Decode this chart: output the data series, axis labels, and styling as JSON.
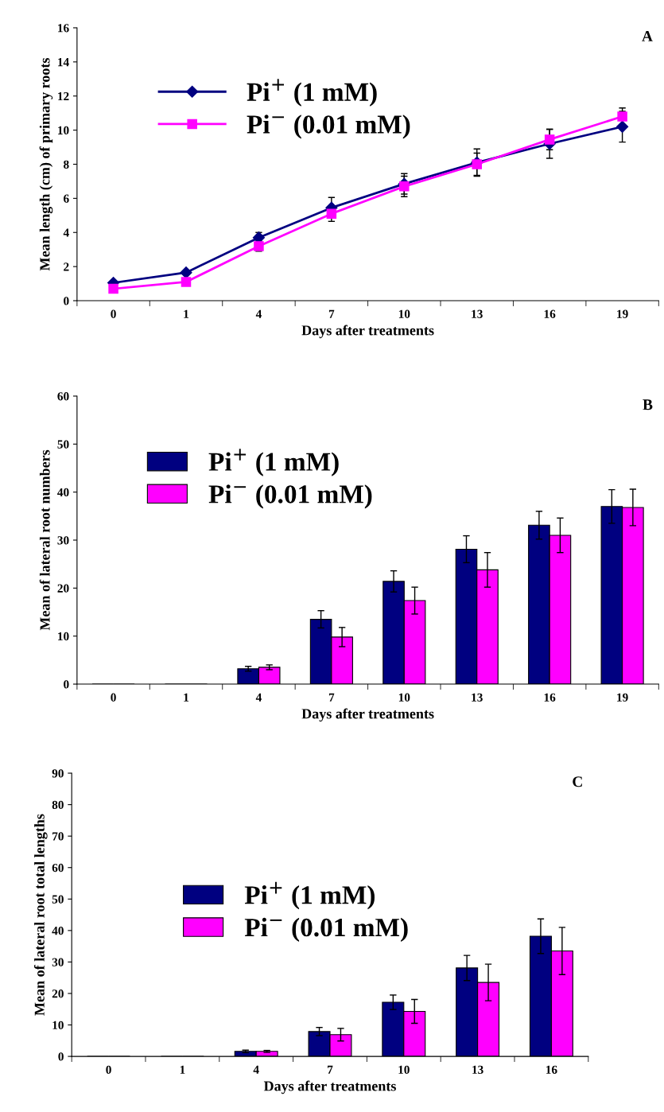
{
  "chart_data": [
    {
      "type": "line",
      "annotations": [
        "A"
      ],
      "xlabel": "Days after treatments",
      "ylabel": "Mean length (cm) of primary roots",
      "categories": [
        "0",
        "1",
        "4",
        "7",
        "10",
        "13",
        "16",
        "19"
      ],
      "ylim": [
        0,
        16
      ],
      "yticks": [
        0,
        2,
        4,
        6,
        8,
        10,
        12,
        14,
        16
      ],
      "legend": "top left",
      "grid": false,
      "series": [
        {
          "name": "Pi$^{+}$ (1 mM)",
          "color": "#000080",
          "marker": "diamond",
          "values": [
            1.05,
            1.65,
            3.7,
            5.45,
            6.85,
            8.1,
            9.2,
            10.2
          ],
          "errors": [
            null,
            null,
            0.3,
            0.6,
            0.6,
            0.8,
            0.85,
            0.9
          ]
        },
        {
          "name": "Pi$^{−}$ (0.01 mM)",
          "color": "#ff00ff",
          "marker": "square",
          "values": [
            0.7,
            1.1,
            3.2,
            5.1,
            6.7,
            8.0,
            9.45,
            10.8
          ],
          "errors": [
            null,
            null,
            0.3,
            0.45,
            0.6,
            0.65,
            0.6,
            0.5
          ]
        }
      ]
    },
    {
      "type": "bar",
      "annotations": [
        "B"
      ],
      "xlabel": "Days after treatments",
      "ylabel": "Mean of lateral root numbers",
      "categories": [
        "0",
        "1",
        "4",
        "7",
        "10",
        "13",
        "16",
        "19"
      ],
      "ylim": [
        0,
        60
      ],
      "yticks": [
        0,
        10,
        20,
        30,
        40,
        50,
        60
      ],
      "legend": "top left",
      "grid": false,
      "series": [
        {
          "name": "Pi$^{+}$ (1 mM)",
          "color": "#000080",
          "values": [
            0,
            0,
            3.2,
            13.5,
            21.4,
            28.1,
            33.1,
            37.0
          ],
          "errors": [
            null,
            null,
            0.5,
            1.8,
            2.2,
            2.8,
            2.9,
            3.5
          ]
        },
        {
          "name": "Pi$^{−}$ (0.01 mM)",
          "color": "#ff00ff",
          "values": [
            0,
            0,
            3.5,
            9.8,
            17.4,
            23.8,
            31.0,
            36.8
          ],
          "errors": [
            null,
            null,
            0.5,
            2.0,
            2.8,
            3.6,
            3.6,
            3.8
          ]
        }
      ]
    },
    {
      "type": "bar",
      "annotations": [
        "C"
      ],
      "xlabel": "Days after treatments",
      "ylabel": "Mean of lateral root total lengths",
      "categories": [
        "0",
        "1",
        "4",
        "7",
        "10",
        "13",
        "16"
      ],
      "ylim": [
        0,
        90
      ],
      "yticks": [
        0,
        10,
        20,
        30,
        40,
        50,
        60,
        70,
        80,
        90
      ],
      "legend": "top left",
      "grid": false,
      "series": [
        {
          "name": "Pi$^{+}$ (1 mM)",
          "color": "#000080",
          "values": [
            0,
            0,
            1.6,
            7.9,
            17.2,
            28.1,
            38.2
          ],
          "errors": [
            null,
            null,
            0.4,
            1.3,
            2.3,
            4.0,
            5.5
          ]
        },
        {
          "name": "Pi$^{−}$ (0.01 mM)",
          "color": "#ff00ff",
          "values": [
            0,
            0,
            1.6,
            6.9,
            14.3,
            23.5,
            33.5
          ],
          "errors": [
            null,
            null,
            0.3,
            2.0,
            3.8,
            5.8,
            7.5
          ]
        }
      ]
    }
  ]
}
